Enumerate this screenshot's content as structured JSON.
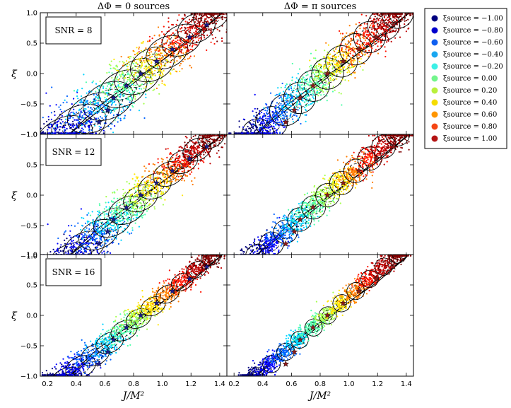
{
  "chart_data": {
    "type": "scatter",
    "column_titles": [
      "ΔΦ = 0 sources",
      "ΔΦ = π sources"
    ],
    "xlabel": "J/M²",
    "ylabel": "ξ",
    "xlim": [
      0.15,
      1.45
    ],
    "ylim": [
      -1.0,
      1.0
    ],
    "xticks": [
      "0.2",
      "0.4",
      "0.6",
      "0.8",
      "1.0",
      "1.2",
      "1.4"
    ],
    "yticks": [
      "−1.0",
      "−0.5",
      "0.0",
      "0.5",
      "1.0"
    ],
    "snr_labels": [
      "SNR = 8",
      "SNR = 12",
      "SNR = 16"
    ],
    "legend_title_prefix": "ξsource =",
    "series": [
      {
        "name": "ξsource = −1.00",
        "xi": -1.0,
        "color": "#00007f"
      },
      {
        "name": "ξsource = −0.80",
        "xi": -0.8,
        "color": "#0000ff"
      },
      {
        "name": "ξsource = −0.60",
        "xi": -0.6,
        "color": "#0063ff"
      },
      {
        "name": "ξsource = −0.40",
        "xi": -0.4,
        "color": "#00d4ff"
      },
      {
        "name": "ξsource = −0.20",
        "xi": -0.2,
        "color": "#4effa9"
      },
      {
        "name": "ξsource = 0.00",
        "xi": 0.0,
        "color": "#a6ff51"
      },
      {
        "name": "ξsource = 0.20",
        "xi": 0.2,
        "color": "#ffe500"
      },
      {
        "name": "ξsource = 0.40",
        "xi": 0.4,
        "color": "#ff7c00"
      },
      {
        "name": "ξsource = 0.60",
        "xi": 0.6,
        "color": "#ff1400"
      },
      {
        "name": "ξsource = 0.80",
        "xi": 0.8,
        "color": "#bf0000"
      },
      {
        "name": "ξsource = 1.00",
        "xi": 1.0,
        "color": "#7f0000"
      }
    ],
    "legend_labels": [
      "ξsource = −1.00",
      "ξsource = −0.80",
      "ξsource = −0.60",
      "ξsource = −0.40",
      "ξsource = −0.20",
      "ξsource = 0.00",
      "ξsource = 0.20",
      "ξsource = 0.40",
      "ξsource = 0.60",
      "ξsource = 0.80",
      "ξsource = 1.00"
    ],
    "legend_colors": [
      "#00007f",
      "#0000cd",
      "#0f5ff0",
      "#19a7f0",
      "#3cf0e6",
      "#73f58c",
      "#b9f03c",
      "#f5dc00",
      "#ff9600",
      "#f54614",
      "#b41414"
    ],
    "source_points": [
      {
        "J": 0.56,
        "xi": -0.8
      },
      {
        "J": 0.66,
        "xi": -0.4
      },
      {
        "J": 0.75,
        "xi": -0.2
      },
      {
        "J": 0.85,
        "xi": 0.0
      },
      {
        "J": 0.96,
        "xi": 0.2
      },
      {
        "J": 1.07,
        "xi": 0.4
      },
      {
        "J": 1.19,
        "xi": 0.6
      },
      {
        "J": 1.31,
        "xi": 0.8
      },
      {
        "J": 0.62,
        "xi": -0.6
      }
    ],
    "boundary": {
      "upper": [
        [
          0.35,
          -1.0
        ],
        [
          0.55,
          -0.55
        ],
        [
          0.78,
          -0.15
        ],
        [
          1.0,
          0.22
        ],
        [
          1.2,
          0.55
        ],
        [
          1.42,
          1.0
        ]
      ],
      "lower": [
        [
          0.35,
          -1.0
        ],
        [
          1.42,
          1.0
        ]
      ]
    }
  }
}
